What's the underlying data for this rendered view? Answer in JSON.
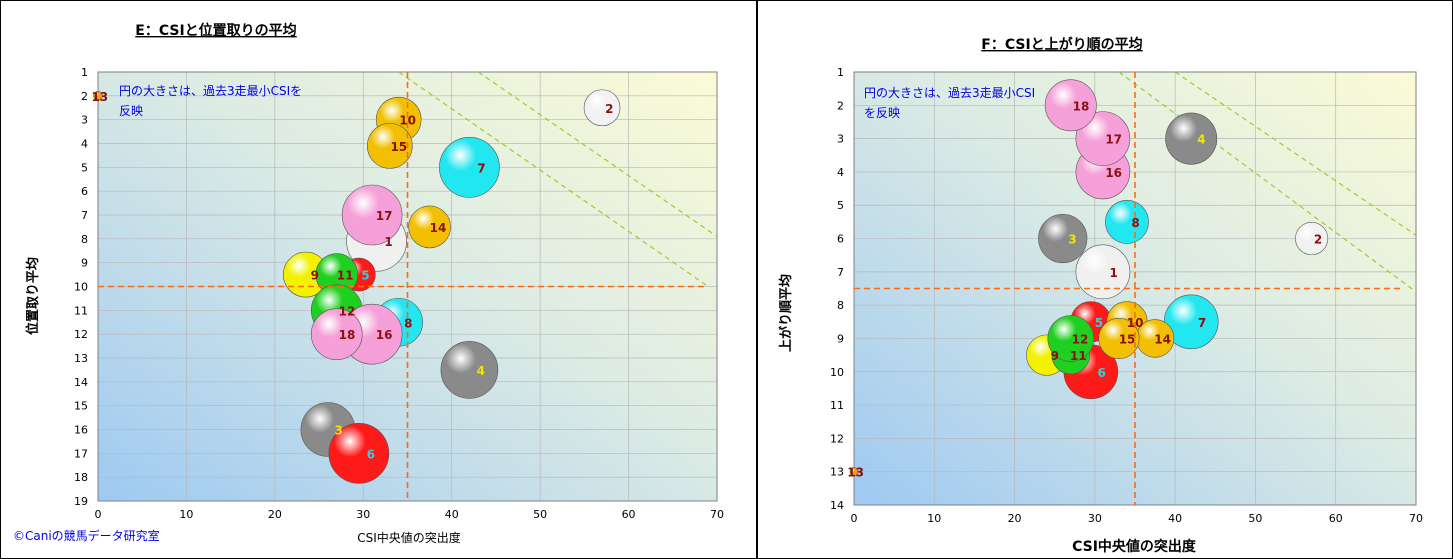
{
  "copyright": "©Caniの競馬データ研究室",
  "charts": {
    "e": {
      "annotation_lines": [
        "円の大きさは、過去3走最小CSIを",
        "反映"
      ]
    },
    "f": {
      "annotation_lines": [
        "円の大きさは、過去3走最小CSI",
        "を反映"
      ]
    }
  },
  "chart_data": [
    {
      "type": "scatter",
      "title": "E：CSIと位置取りの平均",
      "xlabel": "CSI中央値の突出度",
      "ylabel": "位置取り平均",
      "xlim": [
        0,
        70
      ],
      "ylim": [
        1,
        19
      ],
      "y_reversed": true,
      "xticks": [
        0,
        10,
        20,
        30,
        40,
        50,
        60,
        70
      ],
      "yticks": [
        1,
        2,
        3,
        4,
        5,
        6,
        7,
        8,
        9,
        10,
        11,
        12,
        13,
        14,
        15,
        16,
        17,
        18,
        19
      ],
      "grid": true,
      "reference_lines": {
        "x": 35,
        "y": 10
      },
      "trend_lines": [
        {
          "from": [
            34,
            1
          ],
          "to": [
            69,
            10
          ]
        },
        {
          "from": [
            43,
            1
          ],
          "to": [
            70,
            7.9
          ]
        }
      ],
      "points": [
        {
          "label": "1",
          "x": 31.5,
          "y": 8.1,
          "size": 1.0,
          "color": "#f0f0f0",
          "label_color": "#8b1010"
        },
        {
          "label": "2",
          "x": 57.0,
          "y": 2.5,
          "size": 0.6,
          "color": "#f2f2f2",
          "label_color": "#8b1010"
        },
        {
          "label": "3",
          "x": 26.0,
          "y": 16.0,
          "size": 0.9,
          "color": "#8a8a8a",
          "label_color": "#f2e600"
        },
        {
          "label": "4",
          "x": 42.0,
          "y": 13.5,
          "size": 0.95,
          "color": "#8a8a8a",
          "label_color": "#f2e600"
        },
        {
          "label": "5",
          "x": 29.5,
          "y": 9.5,
          "size": 0.55,
          "color": "#ff1a1a",
          "label_color": "#30d0e0"
        },
        {
          "label": "6",
          "x": 29.5,
          "y": 17.0,
          "size": 1.0,
          "color": "#ff1a1a",
          "label_color": "#30d0e0"
        },
        {
          "label": "7",
          "x": 42.0,
          "y": 5.0,
          "size": 1.0,
          "color": "#22e6f0",
          "label_color": "#8b1010"
        },
        {
          "label": "8",
          "x": 34.0,
          "y": 11.5,
          "size": 0.8,
          "color": "#22e6f0",
          "label_color": "#8b1010"
        },
        {
          "label": "9",
          "x": 23.5,
          "y": 9.5,
          "size": 0.75,
          "color": "#f2f200",
          "label_color": "#8b1010"
        },
        {
          "label": "10",
          "x": 34.0,
          "y": 3.0,
          "size": 0.75,
          "color": "#f2c000",
          "label_color": "#8b1010"
        },
        {
          "label": "11",
          "x": 27.0,
          "y": 9.5,
          "size": 0.7,
          "color": "#20d020",
          "label_color": "#8b1010"
        },
        {
          "label": "12",
          "x": 27.0,
          "y": 11.0,
          "size": 0.85,
          "color": "#20d020",
          "label_color": "#8b1010"
        },
        {
          "label": "13",
          "x": 0.0,
          "y": 2.0,
          "size": 0.15,
          "color": "#f0a000",
          "label_color": "#8b1010"
        },
        {
          "label": "14",
          "x": 37.5,
          "y": 7.5,
          "size": 0.7,
          "color": "#f2c000",
          "label_color": "#8b1010"
        },
        {
          "label": "15",
          "x": 33.0,
          "y": 4.1,
          "size": 0.75,
          "color": "#f2c000",
          "label_color": "#8b1010"
        },
        {
          "label": "16",
          "x": 31.0,
          "y": 12.0,
          "size": 1.0,
          "color": "#f5a0d8",
          "label_color": "#8b1010"
        },
        {
          "label": "17",
          "x": 31.0,
          "y": 7.0,
          "size": 1.0,
          "color": "#f5a0d8",
          "label_color": "#8b1010"
        },
        {
          "label": "18",
          "x": 27.0,
          "y": 12.0,
          "size": 0.85,
          "color": "#f5a0d8",
          "label_color": "#8b1010"
        }
      ]
    },
    {
      "type": "scatter",
      "title": "F：CSIと上がり順の平均",
      "xlabel": "CSI中央値の突出度",
      "ylabel": "上がり順平均",
      "xlim": [
        0,
        70
      ],
      "ylim": [
        1,
        14
      ],
      "y_reversed": true,
      "xticks": [
        0,
        10,
        20,
        30,
        40,
        50,
        60,
        70
      ],
      "yticks": [
        1,
        2,
        3,
        4,
        5,
        6,
        7,
        8,
        9,
        10,
        11,
        12,
        13,
        14
      ],
      "grid": true,
      "reference_lines": {
        "x": 35,
        "y": 7.5
      },
      "trend_lines": [
        {
          "from": [
            33,
            1
          ],
          "to": [
            70,
            7.6
          ]
        },
        {
          "from": [
            40,
            1
          ],
          "to": [
            70,
            5.9
          ]
        }
      ],
      "points": [
        {
          "label": "1",
          "x": 31.0,
          "y": 7.0,
          "size": 1.0,
          "color": "#f0f0f0",
          "label_color": "#8b1010"
        },
        {
          "label": "2",
          "x": 57.0,
          "y": 6.0,
          "size": 0.6,
          "color": "#f2f2f2",
          "label_color": "#8b1010"
        },
        {
          "label": "3",
          "x": 26.0,
          "y": 6.0,
          "size": 0.9,
          "color": "#8a8a8a",
          "label_color": "#f2e600"
        },
        {
          "label": "4",
          "x": 42.0,
          "y": 3.0,
          "size": 0.95,
          "color": "#8a8a8a",
          "label_color": "#f2e600"
        },
        {
          "label": "5",
          "x": 29.5,
          "y": 8.5,
          "size": 0.75,
          "color": "#ff1a1a",
          "label_color": "#30d0e0"
        },
        {
          "label": "6",
          "x": 29.5,
          "y": 10.0,
          "size": 1.0,
          "color": "#ff1a1a",
          "label_color": "#30d0e0"
        },
        {
          "label": "7",
          "x": 42.0,
          "y": 8.5,
          "size": 1.0,
          "color": "#22e6f0",
          "label_color": "#8b1010"
        },
        {
          "label": "8",
          "x": 34.0,
          "y": 5.5,
          "size": 0.8,
          "color": "#22e6f0",
          "label_color": "#8b1010"
        },
        {
          "label": "9",
          "x": 24.0,
          "y": 9.5,
          "size": 0.75,
          "color": "#f2f200",
          "label_color": "#8b1010"
        },
        {
          "label": "10",
          "x": 34.0,
          "y": 8.5,
          "size": 0.75,
          "color": "#f2c000",
          "label_color": "#8b1010"
        },
        {
          "label": "11",
          "x": 27.0,
          "y": 9.5,
          "size": 0.7,
          "color": "#20d020",
          "label_color": "#8b1010"
        },
        {
          "label": "12",
          "x": 27.0,
          "y": 9.0,
          "size": 0.85,
          "color": "#20d020",
          "label_color": "#8b1010"
        },
        {
          "label": "13",
          "x": 0.0,
          "y": 13.0,
          "size": 0.15,
          "color": "#f0a000",
          "label_color": "#8b1010"
        },
        {
          "label": "14",
          "x": 37.5,
          "y": 9.0,
          "size": 0.7,
          "color": "#f2c000",
          "label_color": "#8b1010"
        },
        {
          "label": "15",
          "x": 33.0,
          "y": 9.0,
          "size": 0.75,
          "color": "#f2c000",
          "label_color": "#8b1010"
        },
        {
          "label": "16",
          "x": 31.0,
          "y": 4.0,
          "size": 1.0,
          "color": "#f5a0d8",
          "label_color": "#8b1010"
        },
        {
          "label": "17",
          "x": 31.0,
          "y": 3.0,
          "size": 1.0,
          "color": "#f5a0d8",
          "label_color": "#8b1010"
        },
        {
          "label": "18",
          "x": 27.0,
          "y": 2.0,
          "size": 0.95,
          "color": "#f5a0d8",
          "label_color": "#8b1010"
        }
      ]
    }
  ]
}
